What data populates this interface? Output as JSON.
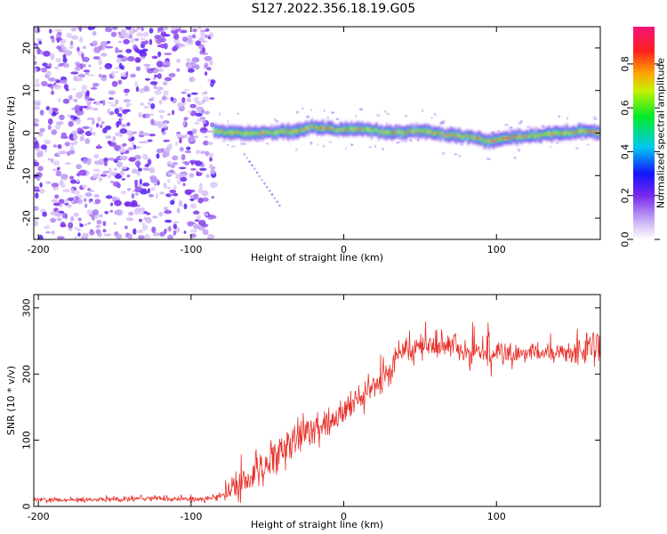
{
  "title": "S127.2022.356.18.19.G05",
  "chart_data": [
    {
      "type": "heatmap",
      "name": "spectrogram",
      "xlabel": "Height of straight line (km)",
      "ylabel": "Frequency (Hz)",
      "xlim": [
        -203,
        168
      ],
      "ylim": [
        -25,
        25
      ],
      "xticks": [
        -200,
        -100,
        0,
        100
      ],
      "yticks": [
        -20,
        -10,
        0,
        10,
        20
      ],
      "colorbar": {
        "label": "Normalized spectral amplitude",
        "range": [
          0.0,
          0.97
        ],
        "ticks": [
          "0.0",
          "0.2",
          "0.4",
          "0.6",
          "0.8"
        ],
        "tick_values": [
          0.0,
          0.2,
          0.4,
          0.6,
          0.8
        ]
      },
      "noise_region_x": [
        -203,
        -85
      ],
      "signal_track": {
        "x": [
          -85,
          -70,
          -50,
          -30,
          -20,
          -10,
          0,
          10,
          20,
          30,
          40,
          50,
          60,
          70,
          80,
          90,
          95,
          100,
          110,
          120,
          130,
          140,
          150,
          160,
          168
        ],
        "freq_hz": [
          0.5,
          0.0,
          0.0,
          0.5,
          1.5,
          1.0,
          0.8,
          1.0,
          0.5,
          0.0,
          0.2,
          0.5,
          0.0,
          -0.5,
          -0.8,
          -1.5,
          -2.0,
          -1.5,
          -1.0,
          -0.8,
          -0.5,
          0.0,
          0.2,
          0.5,
          0.0
        ]
      },
      "secondary_streak": {
        "x": [
          -65,
          -42
        ],
        "freq_hz": [
          -5,
          -17
        ]
      }
    },
    {
      "type": "line",
      "name": "snr",
      "xlabel": "Height of straight line (km)",
      "ylabel": "SNR (10 * v/v)",
      "xlim": [
        -203,
        168
      ],
      "ylim": [
        0,
        320
      ],
      "xticks": [
        -200,
        -100,
        0,
        100
      ],
      "yticks": [
        0,
        100,
        200,
        300
      ],
      "color": "#e8302a",
      "series": [
        {
          "name": "SNR",
          "x": [
            -203,
            -180,
            -160,
            -140,
            -120,
            -100,
            -90,
            -80,
            -70,
            -60,
            -50,
            -40,
            -30,
            -20,
            -10,
            0,
            10,
            20,
            30,
            35,
            40,
            50,
            60,
            70,
            80,
            90,
            100,
            110,
            120,
            130,
            140,
            150,
            160,
            168
          ],
          "values": [
            10,
            10,
            10,
            12,
            12,
            10,
            12,
            15,
            28,
            45,
            65,
            80,
            100,
            118,
            130,
            142,
            160,
            180,
            200,
            225,
            245,
            240,
            245,
            240,
            235,
            232,
            230,
            228,
            230,
            232,
            232,
            232,
            235,
            240
          ],
          "noise_amplitude": [
            4,
            4,
            4,
            5,
            5,
            4,
            5,
            8,
            22,
            28,
            32,
            32,
            30,
            30,
            28,
            25,
            25,
            25,
            25,
            25,
            22,
            22,
            22,
            22,
            25,
            28,
            25,
            18,
            15,
            15,
            18,
            22,
            25,
            25
          ]
        }
      ]
    }
  ]
}
